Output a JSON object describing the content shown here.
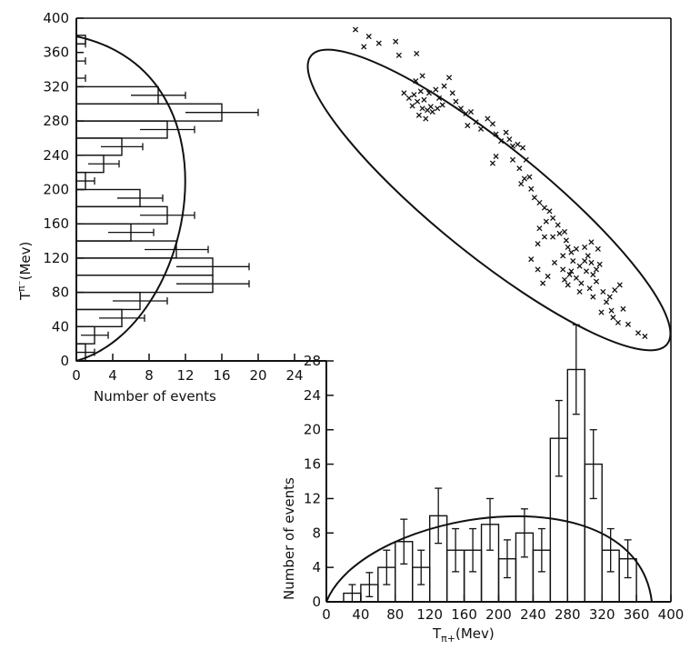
{
  "chart_data": [
    {
      "type": "scatter",
      "name": "dalitz",
      "xlabel": "",
      "ylabel": "",
      "xlim": [
        0,
        400
      ],
      "ylim": [
        0,
        400
      ],
      "x_ticks": [],
      "y_ticks": [
        "0",
        "40",
        "80",
        "120",
        "160",
        "200",
        "240",
        "280",
        "320",
        "360",
        "400"
      ],
      "marker": "x",
      "points": [
        [
          12,
          392
        ],
        [
          28,
          384
        ],
        [
          22,
          372
        ],
        [
          40,
          376
        ],
        [
          60,
          378
        ],
        [
          64,
          362
        ],
        [
          85,
          364
        ],
        [
          84,
          332
        ],
        [
          92,
          338
        ],
        [
          90,
          320
        ],
        [
          70,
          318
        ],
        [
          76,
          312
        ],
        [
          82,
          316
        ],
        [
          80,
          303
        ],
        [
          86,
          308
        ],
        [
          94,
          310
        ],
        [
          100,
          318
        ],
        [
          108,
          322
        ],
        [
          112,
          312
        ],
        [
          118,
          326
        ],
        [
          124,
          336
        ],
        [
          116,
          304
        ],
        [
          104,
          296
        ],
        [
          98,
          298
        ],
        [
          92,
          300
        ],
        [
          96,
          288
        ],
        [
          88,
          292
        ],
        [
          102,
          302
        ],
        [
          110,
          300
        ],
        [
          128,
          318
        ],
        [
          132,
          308
        ],
        [
          138,
          300
        ],
        [
          144,
          294
        ],
        [
          150,
          296
        ],
        [
          146,
          280
        ],
        [
          156,
          284
        ],
        [
          162,
          276
        ],
        [
          170,
          288
        ],
        [
          176,
          282
        ],
        [
          180,
          270
        ],
        [
          186,
          262
        ],
        [
          192,
          272
        ],
        [
          196,
          264
        ],
        [
          200,
          256
        ],
        [
          206,
          258
        ],
        [
          212,
          254
        ],
        [
          216,
          240
        ],
        [
          200,
          240
        ],
        [
          208,
          230
        ],
        [
          180,
          244
        ],
        [
          176,
          236
        ],
        [
          210,
          212
        ],
        [
          214,
          218
        ],
        [
          220,
          220
        ],
        [
          222,
          206
        ],
        [
          226,
          196
        ],
        [
          232,
          190
        ],
        [
          238,
          184
        ],
        [
          244,
          180
        ],
        [
          240,
          168
        ],
        [
          248,
          172
        ],
        [
          254,
          164
        ],
        [
          248,
          150
        ],
        [
          256,
          154
        ],
        [
          262,
          156
        ],
        [
          264,
          146
        ],
        [
          266,
          138
        ],
        [
          260,
          128
        ],
        [
          270,
          132
        ],
        [
          276,
          136
        ],
        [
          272,
          122
        ],
        [
          280,
          116
        ],
        [
          286,
          122
        ],
        [
          290,
          128
        ],
        [
          294,
          120
        ],
        [
          288,
          110
        ],
        [
          296,
          106
        ],
        [
          300,
          112
        ],
        [
          304,
          118
        ],
        [
          300,
          98
        ],
        [
          292,
          90
        ],
        [
          296,
          80
        ],
        [
          308,
          86
        ],
        [
          312,
          74
        ],
        [
          316,
          80
        ],
        [
          322,
          88
        ],
        [
          328,
          94
        ],
        [
          332,
          66
        ],
        [
          318,
          64
        ],
        [
          306,
          62
        ],
        [
          320,
          56
        ],
        [
          326,
          50
        ],
        [
          338,
          48
        ],
        [
          350,
          38
        ],
        [
          358,
          34
        ],
        [
          250,
          120
        ],
        [
          260,
          112
        ],
        [
          262,
          100
        ],
        [
          268,
          106
        ],
        [
          276,
          102
        ],
        [
          282,
          96
        ],
        [
          242,
          104
        ],
        [
          236,
          96
        ],
        [
          230,
          112
        ],
        [
          222,
          124
        ],
        [
          286,
          138
        ],
        [
          294,
          144
        ],
        [
          302,
          136
        ],
        [
          232,
          160
        ],
        [
          238,
          150
        ],
        [
          230,
          142
        ],
        [
          270,
          110
        ],
        [
          266,
          94
        ],
        [
          280,
          86
        ]
      ],
      "ellipse_boundary": "closed kinematic contour"
    },
    {
      "type": "bar",
      "name": "pi-minus-histogram",
      "orientation": "horizontal",
      "xlabel": "Number of events",
      "ylabel": "T",
      "ylabel_super": "π⁻",
      "ylabel_units": "(Mev)",
      "xlim": [
        0,
        24
      ],
      "ylim": [
        0,
        400
      ],
      "x_ticks": [
        "0",
        "4",
        "8",
        "12",
        "16",
        "20",
        "24"
      ],
      "bin_width": 20,
      "bins_start": [
        0,
        20,
        40,
        60,
        80,
        100,
        120,
        140,
        160,
        180,
        200,
        220,
        240,
        260,
        280,
        300,
        320,
        340,
        360
      ],
      "values": [
        1,
        2,
        5,
        7,
        15,
        15,
        11,
        6,
        10,
        7,
        1,
        3,
        5,
        10,
        16,
        9,
        0,
        0,
        0
      ],
      "extra_bins": [
        {
          "start": 370,
          "end": 380,
          "value": 1
        }
      ],
      "errors": [
        1,
        1.5,
        2.5,
        3,
        4,
        4,
        3.5,
        2.5,
        3,
        2.5,
        1,
        1.7,
        2.3,
        3,
        4,
        3,
        1,
        1,
        1
      ],
      "curve": "phase-space boundary"
    },
    {
      "type": "bar",
      "name": "pi-plus-histogram",
      "orientation": "vertical",
      "xlabel": "T",
      "xlabel_sub": "π+",
      "xlabel_units": "(Mev)",
      "ylabel": "Number of events",
      "xlim": [
        0,
        400
      ],
      "ylim": [
        0,
        28
      ],
      "x_ticks": [
        "0",
        "40",
        "80",
        "120",
        "160",
        "200",
        "240",
        "280",
        "320",
        "360",
        "400"
      ],
      "y_ticks": [
        "0",
        "4",
        "8",
        "12",
        "16",
        "20",
        "24",
        "28"
      ],
      "bin_width": 20,
      "bins_start": [
        20,
        40,
        60,
        80,
        100,
        120,
        140,
        160,
        180,
        200,
        220,
        240,
        260,
        280,
        300,
        320,
        340
      ],
      "values": [
        1,
        2,
        4,
        7,
        4,
        10,
        6,
        6,
        9,
        5,
        8,
        6,
        19,
        27,
        16,
        6,
        5
      ],
      "errors": [
        1,
        1.4,
        2,
        2.6,
        2,
        3.2,
        2.5,
        2.5,
        3,
        2.2,
        2.8,
        2.5,
        4.4,
        5.2,
        4,
        2.5,
        2.2
      ],
      "curve": "phase-space boundary"
    }
  ]
}
